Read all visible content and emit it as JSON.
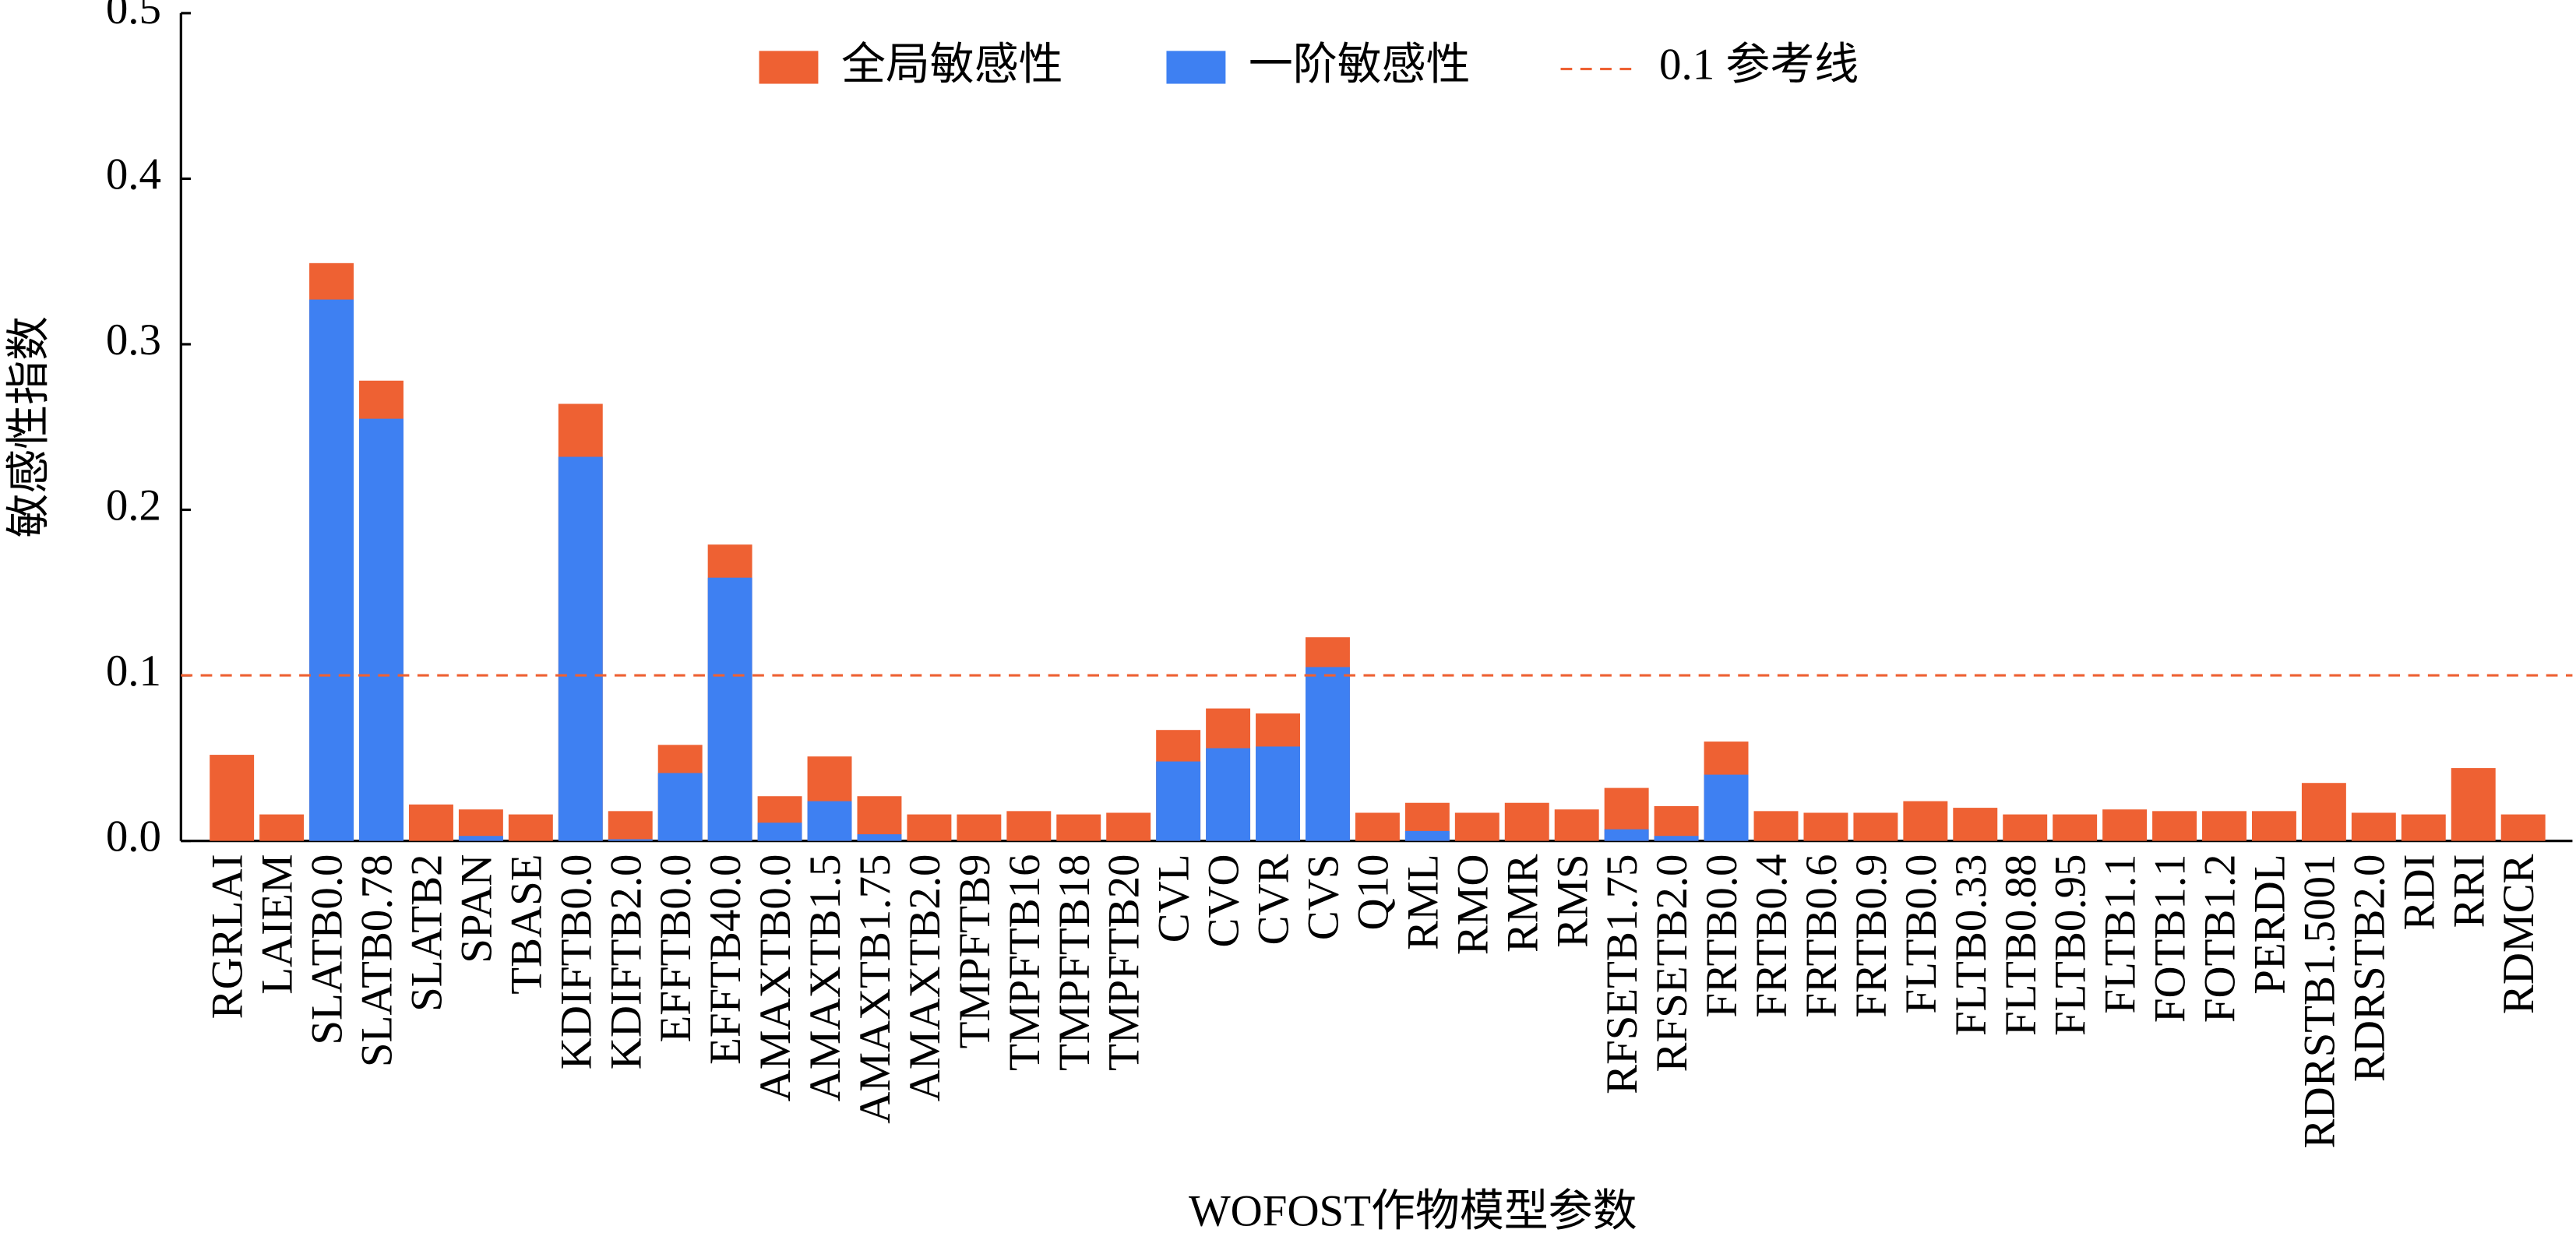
{
  "chart_data": {
    "type": "bar",
    "y_label": "敏感性指数",
    "x_label": "WOFOST作物模型参数",
    "categories": [
      "RGRLAI",
      "LAIEM",
      "SLATB0.0",
      "SLATB0.78",
      "SLATB2",
      "SPAN",
      "TBASE",
      "KDIFTB0.0",
      "KDIFTB2.0",
      "EFFTB0.0",
      "EFFTB40.0",
      "AMAXTB0.0",
      "AMAXTB1.5",
      "AMAXTB1.75",
      "AMAXTB2.0",
      "TMPFTB9",
      "TMPFTB16",
      "TMPFTB18",
      "TMPFTB20",
      "CVL",
      "CVO",
      "CVR",
      "CVS",
      "Q10",
      "RML",
      "RMO",
      "RMR",
      "RMS",
      "RFSETB1.75",
      "RFSETB2.0",
      "FRTB0.0",
      "FRTB0.4",
      "FRTB0.6",
      "FRTB0.9",
      "FLTB0.0",
      "FLTB0.33",
      "FLTB0.88",
      "FLTB0.95",
      "FLTB1.1",
      "FOTB1.1",
      "FOTB1.2",
      "PERDL",
      "RDRSTB1.5001",
      "RDRSTB2.0",
      "RDI",
      "RRI",
      "RDMCR"
    ],
    "series": [
      {
        "name": "全局敏感性",
        "color": "#ee6133",
        "values": [
          0.052,
          0.016,
          0.349,
          0.278,
          0.022,
          0.019,
          0.016,
          0.264,
          0.018,
          0.058,
          0.179,
          0.027,
          0.051,
          0.027,
          0.016,
          0.016,
          0.018,
          0.016,
          0.017,
          0.067,
          0.08,
          0.077,
          0.123,
          0.017,
          0.023,
          0.017,
          0.023,
          0.019,
          0.032,
          0.021,
          0.06,
          0.018,
          0.017,
          0.017,
          0.024,
          0.02,
          0.016,
          0.016,
          0.019,
          0.018,
          0.018,
          0.018,
          0.035,
          0.017,
          0.016,
          0.044,
          0.016
        ]
      },
      {
        "name": "一阶敏感性",
        "color": "#3e80f2",
        "values": [
          0,
          0,
          0.327,
          0.255,
          0,
          0.003,
          0,
          0.232,
          0.001,
          0.041,
          0.159,
          0.011,
          0.024,
          0.004,
          0,
          0,
          0,
          0,
          0,
          0.048,
          0.056,
          0.057,
          0.105,
          0,
          0.006,
          0,
          0,
          0,
          0.007,
          0.003,
          0.04,
          0,
          0,
          0,
          0,
          0,
          0,
          0,
          0,
          0,
          0,
          0,
          0,
          0,
          0,
          0,
          0
        ]
      }
    ],
    "reference_line": {
      "name": "0.1 参考线",
      "value": 0.1,
      "color": "#ee6133"
    },
    "ylim": [
      0,
      0.5
    ],
    "yticks": [
      {
        "value": 0,
        "label": "0.0"
      },
      0.1,
      0.2,
      0.3,
      0.4,
      0.5
    ]
  }
}
